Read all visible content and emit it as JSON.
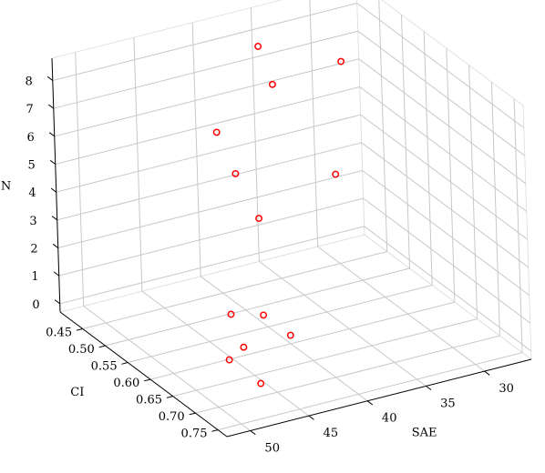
{
  "chart_data": {
    "type": "scatter",
    "dimensions": "3d",
    "title": "",
    "axes": {
      "x": {
        "label": "SAE",
        "range": [
          26,
          52
        ],
        "ticks": [
          30,
          35,
          40,
          45,
          50
        ],
        "inverted": true
      },
      "y": {
        "label": "CI",
        "range": [
          0.4,
          0.77
        ],
        "ticks": [
          0.45,
          0.5,
          0.55,
          0.6,
          0.65,
          0.7,
          0.75
        ]
      },
      "z": {
        "label": "N",
        "range": [
          -0.3,
          8.8
        ],
        "ticks": [
          0,
          1,
          2,
          3,
          4,
          5,
          6,
          7,
          8
        ]
      }
    },
    "grid": true,
    "marker": {
      "shape": "hollow-circle",
      "color": "#ff0000"
    },
    "points": [
      {
        "x": 36,
        "y": 0.44,
        "z": 8
      },
      {
        "x": 32,
        "y": 0.52,
        "z": 8
      },
      {
        "x": 36,
        "y": 0.47,
        "z": 7
      },
      {
        "x": 39,
        "y": 0.42,
        "z": 5
      },
      {
        "x": 35,
        "y": 0.58,
        "z": 5
      },
      {
        "x": 39,
        "y": 0.46,
        "z": 4
      },
      {
        "x": 39,
        "y": 0.51,
        "z": 3
      },
      {
        "x": 44,
        "y": 0.6,
        "z": 0
      },
      {
        "x": 46,
        "y": 0.69,
        "z": 0
      },
      {
        "x": 42,
        "y": 0.52,
        "z": 0
      },
      {
        "x": 40,
        "y": 0.54,
        "z": 0
      },
      {
        "x": 46,
        "y": 0.62,
        "z": 0
      },
      {
        "x": 40,
        "y": 0.6,
        "z": 0
      }
    ]
  }
}
